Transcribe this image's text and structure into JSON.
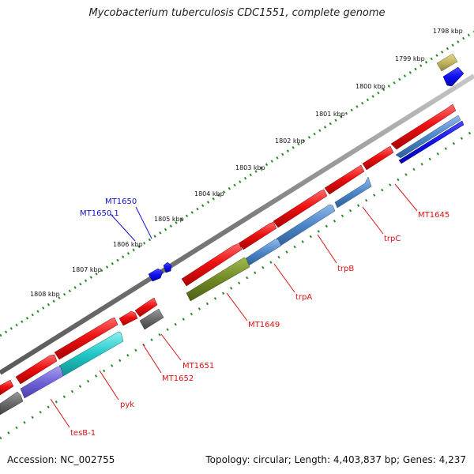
{
  "title": "Mycobacterium tuberculosis CDC1551, complete genome",
  "accession": "Accession: NC_002755",
  "summary": "Topology: circular; Length: 4,403,837 bp; Genes: 4,237",
  "colors": {
    "backbone": "#8a8a8a",
    "tick": "#2a8a2a",
    "gene_red": "#ee1111",
    "label_red": "#dd1111",
    "label_blue": "#1111cc"
  },
  "ticks": [
    "1798 kbp",
    "1799 kbp",
    "1800 kbp",
    "1801 kbp",
    "1802 kbp",
    "1803 kbp",
    "1804 kbp",
    "1805 kbp",
    "1806 kbp",
    "1807 kbp",
    "1808 kbp"
  ],
  "labels": {
    "mt1650": "MT1650",
    "mt1650_1": "MT1650.1",
    "mt1645": "MT1645",
    "trpC": "trpC",
    "trpB": "trpB",
    "trpA": "trpA",
    "mt1649": "MT1649",
    "mt1651": "MT1651",
    "mt1652": "MT1652",
    "pyk": "pyk",
    "tesB1": "tesB-1"
  }
}
